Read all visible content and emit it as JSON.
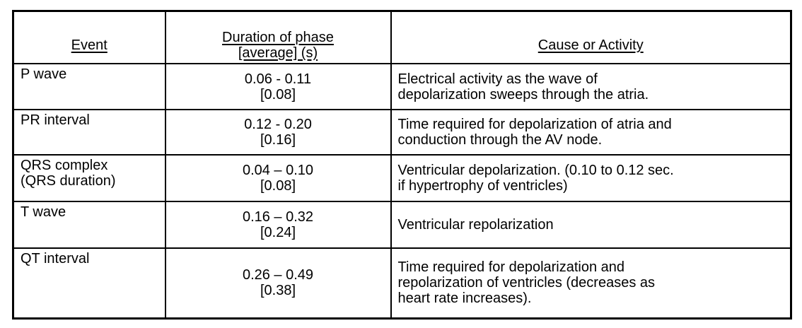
{
  "colors": {
    "text": "#000000",
    "border": "#000000",
    "background": "#ffffff"
  },
  "chart_data": {
    "type": "table",
    "columns": [
      {
        "label": "Event"
      },
      {
        "label": "Duration of phase\n[average] (s)"
      },
      {
        "label": "Cause or Activity"
      }
    ],
    "rows": [
      {
        "event": "P wave",
        "duration_display": "0.06 - 0.11\n[0.08]",
        "duration_range_s": [
          0.06,
          0.11
        ],
        "duration_average_s": 0.08,
        "cause": "Electrical activity as the wave of\ndepolarization sweeps through the atria."
      },
      {
        "event": "PR interval",
        "duration_display": "0.12 - 0.20\n[0.16]",
        "duration_range_s": [
          0.12,
          0.2
        ],
        "duration_average_s": 0.16,
        "cause": "Time required for depolarization of atria and\nconduction through the AV node."
      },
      {
        "event": "QRS complex\n(QRS duration)",
        "duration_display": "0.04 – 0.10\n[0.08]",
        "duration_range_s": [
          0.04,
          0.1
        ],
        "duration_average_s": 0.08,
        "cause": "Ventricular depolarization. (0.10 to 0.12 sec.\nif hypertrophy of ventricles)"
      },
      {
        "event": "T wave",
        "duration_display": "0.16 – 0.32\n[0.24]",
        "duration_range_s": [
          0.16,
          0.32
        ],
        "duration_average_s": 0.24,
        "cause": "Ventricular repolarization"
      },
      {
        "event": "QT interval",
        "duration_display": "0.26 – 0.49\n[0.38]",
        "duration_range_s": [
          0.26,
          0.49
        ],
        "duration_average_s": 0.38,
        "cause": "Time required for depolarization and\nrepolarization of ventricles (decreases as\nheart rate increases)."
      }
    ]
  }
}
